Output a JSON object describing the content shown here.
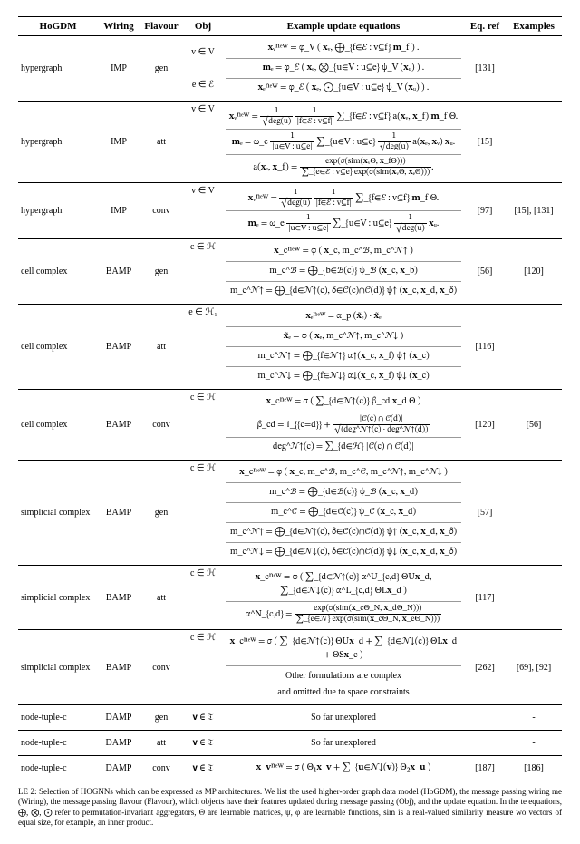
{
  "columns": [
    "HoGDM",
    "Wiring",
    "Flavour",
    "Obj",
    "Example update equations",
    "Eq. ref",
    "Examples"
  ],
  "rows": [
    {
      "hogdm": "hypergraph",
      "wiring": "IMP",
      "flavour": "gen",
      "obj_a": "v ∈ V",
      "obj_b": "e ∈ ℰ",
      "eq_ref": "[131]",
      "examples": "",
      "eq1": "𝐱ᵥⁿᵉʷ = φ_V ( 𝐱ᵥ, ⨁_{f∈ℰ : v⊆f} 𝐦_f ) .",
      "eq2": "𝐦ₑ = φ_ℰ ( 𝐱ₑ, ⨂_{u∈V : u⊆e} ψ_V (𝐱ᵤ) ) .",
      "eq3": "𝐱ₑⁿᵉʷ = φ_ℰ ( 𝐱ₑ, ⨀_{u∈V : u⊆e} ψ_V (𝐱ᵤ) ) ."
    },
    {
      "hogdm": "hypergraph",
      "wiring": "IMP",
      "flavour": "att",
      "obj_a": "v ∈ V",
      "eq_ref": "[15]",
      "examples": "",
      "eq1_pre": "𝐱ᵥⁿᵉʷ = ",
      "eq1_f1n": "1",
      "eq1_f1d": "√deg(u)",
      "eq1_f2n": "1",
      "eq1_f2d": "|f∈ℰ : v⊆f|",
      "eq1_post": " ∑_{f∈ℰ : v⊆f} a(𝐱ᵥ, 𝐱_f) 𝐦_f Θ.",
      "eq2_pre": "𝐦ₑ = ω_e ",
      "eq2_f1n": "1",
      "eq2_f1d": "|u∈V : u⊆e|",
      "eq2_mid": " ∑_{u∈V : u⊆e} ",
      "eq2_f2n": "1",
      "eq2_f2d": "√deg(u)",
      "eq2_post": " a(𝐱ₑ, 𝐱ᵥ) 𝐱ᵤ.",
      "eq3_pre": "a(𝐱ₑ, 𝐱_f) = ",
      "eq3_fn": "exp(σ(sim(𝐱ᵥΘ, 𝐱_fΘ)))",
      "eq3_fd": "∑_{e∈ℰ : v⊆e} exp(σ(sim(𝐱ᵥΘ, 𝐱ₑΘ)))",
      "eq3_post": "."
    },
    {
      "hogdm": "hypergraph",
      "wiring": "IMP",
      "flavour": "conv",
      "obj_a": "v ∈ V",
      "eq_ref": "[97]",
      "examples": "[15], [131]",
      "eq1_pre": "𝐱ᵥⁿᵉʷ = ",
      "eq1_f1n": "1",
      "eq1_f1d": "√deg(u)",
      "eq1_f2n": "1",
      "eq1_f2d": "|f∈ℰ : v⊆f|",
      "eq1_post": " ∑_{f∈ℰ : v⊆f} 𝐦_f Θ.",
      "eq2_pre": "𝐦ₑ = ω_e ",
      "eq2_f1n": "1",
      "eq2_f1d": "|u∈V : u⊆e|",
      "eq2_mid": " ∑_{u∈V : u⊆e} ",
      "eq2_f2n": "1",
      "eq2_f2d": "√deg(u)",
      "eq2_post": " 𝐱ᵤ."
    },
    {
      "hogdm": "cell complex",
      "wiring": "BAMP",
      "flavour": "gen",
      "obj_a": "c ∈ ℋ",
      "eq_ref": "[56]",
      "examples": "[120]",
      "eq1": "𝐱_cⁿᵉʷ = φ ( 𝐱_c, m_c^ℬ, m_c^𝒩↑ )",
      "eq2": "m_c^ℬ = ⨁_{b∈ℬ(c)} ψ_ℬ (𝐱_c, 𝐱_b)",
      "eq3": "m_c^𝒩↑ = ⨁_{d∈𝒩↑(c), δ∈𝒞(c)∩𝒞(d)} ψ↑ (𝐱_c, 𝐱_d, 𝐱_δ)"
    },
    {
      "hogdm": "cell complex",
      "wiring": "BAMP",
      "flavour": "att",
      "obj_a": "e ∈ ℋ₁",
      "eq_ref": "[116]",
      "examples": "",
      "eq1": "𝐱ₑⁿᵉʷ = α_p (𝐱̃ₑ) · 𝐱̃ₑ",
      "eq2": "𝐱̃ₑ = φ ( 𝐱ₑ, m_c^𝒩↑, m_c^𝒩↓ )",
      "eq3": "m_c^𝒩↑ = ⨁_{f∈𝒩↑} α↑(𝐱_c, 𝐱_f) ψ↑ (𝐱_c)",
      "eq4": "m_c^𝒩↓ = ⨁_{f∈𝒩↓} α↓(𝐱_c, 𝐱_f) ψ↓ (𝐱_c)"
    },
    {
      "hogdm": "cell complex",
      "wiring": "BAMP",
      "flavour": "conv",
      "obj_a": "c ∈ ℋ",
      "eq_ref": "[120]",
      "examples": "[56]",
      "eq1": "𝐱_cⁿᵉʷ = σ ( ∑_{d∈𝒩↑(c)} β_cd 𝐱_d Θ )",
      "eq2_pre": "β_cd = 𝟙_{{c=d}} + ",
      "eq2_fn": "|𝒞(c) ∩ 𝒞(d)|",
      "eq2_fd": "√(deg^𝒩↑(c) · deg^𝒩↑(d))",
      "eq3": "deg^𝒩↑(c) = ∑_{d∈ℋ} |𝒞(c) ∩ 𝒞(d)|"
    },
    {
      "hogdm": "simplicial complex",
      "wiring": "BAMP",
      "flavour": "gen",
      "obj_a": "c ∈ ℋ",
      "eq_ref": "[57]",
      "examples": "",
      "eq1": "𝐱_cⁿᵉʷ = φ ( 𝐱_c, m_c^ℬ, m_c^𝒞, m_c^𝒩↑, m_c^𝒩↓ )",
      "eq2": "m_c^ℬ = ⨁_{d∈ℬ(c)} ψ_ℬ (𝐱_c, 𝐱_d)",
      "eq3": "m_c^𝒞 = ⨁_{d∈𝒞(c)} ψ_𝒞 (𝐱_c, 𝐱_d)",
      "eq4": "m_c^𝒩↑ = ⨁_{d∈𝒩↑(c), δ∈𝒞(c)∩𝒞(d)} ψ↑ (𝐱_c, 𝐱_d, 𝐱_δ)",
      "eq5": "m_c^𝒩↓ = ⨁_{d∈𝒩↓(c), δ∈𝒞(c)∩𝒞(d)} ψ↓ (𝐱_c, 𝐱_d, 𝐱_δ)"
    },
    {
      "hogdm": "simplicial complex",
      "wiring": "BAMP",
      "flavour": "att",
      "obj_a": "c ∈ ℋ",
      "eq_ref": "[117]",
      "examples": "",
      "eq1": "𝐱_cⁿᵉʷ = φ ( ∑_{d∈𝒩↑(c)} α^U_{c,d} ΘU𝐱_d, ∑_{d∈𝒩↓(c)} α^L_{c,d} ΘL𝐱_d )",
      "eq2_pre": "α^N_{c,d} = ",
      "eq2_fn": "exp(σ(sim(𝐱_cΘ_N, 𝐱_dΘ_N)))",
      "eq2_fd": "∑_{e∈𝒩} exp(σ(sim(𝐱_cΘ_N, 𝐱_eΘ_N)))"
    },
    {
      "hogdm": "simplicial complex",
      "wiring": "BAMP",
      "flavour": "conv",
      "obj_a": "c ∈ ℋ",
      "eq_ref": "[262]",
      "examples": "[69], [92]",
      "eq1": "𝐱_cⁿᵉʷ = σ ( ∑_{d∈𝒩↑(c)} ΘU𝐱_d + ∑_{d∈𝒩↓(c)} ΘL𝐱_d + ΘS𝐱_c )",
      "eq2": "Other formulations are complex",
      "eq3": "and omitted due to space constraints"
    },
    {
      "hogdm": "node-tuple-c",
      "wiring": "DAMP",
      "flavour": "gen",
      "obj_a": "𝐯 ∈ 𝔗",
      "eq_ref": "",
      "examples": "-",
      "eq1": "So far unexplored"
    },
    {
      "hogdm": "node-tuple-c",
      "wiring": "DAMP",
      "flavour": "att",
      "obj_a": "𝐯 ∈ 𝔗",
      "eq_ref": "",
      "examples": "-",
      "eq1": "So far unexplored"
    },
    {
      "hogdm": "node-tuple-c",
      "wiring": "DAMP",
      "flavour": "conv",
      "obj_a": "𝐯 ∈ 𝔗",
      "eq_ref": "[187]",
      "examples": "[186]",
      "eq1": "𝐱_𝐯ⁿᵉʷ = σ ( Θ₁𝐱_𝐯 + ∑_{𝐮∈𝒩↓(𝐯)} Θ₂𝐱_𝐮 )"
    }
  ],
  "caption": "LE 2: Selection of HOGNNs which can be expressed as MP architectures. We list the used higher-order graph data model (HoGDM), the message passing wiring me (Wiring), the message passing flavour (Flavour), which objects have their features updated during message passing (Obj), and the update equation. In the te equations, ⨁, ⨂, ⨀ refer to permutation-invariant aggregators, Θ are learnable matrices, ψ, φ are learnable functions, sim is a real-valued similarity measure wo vectors of equal size, for example, an inner product."
}
